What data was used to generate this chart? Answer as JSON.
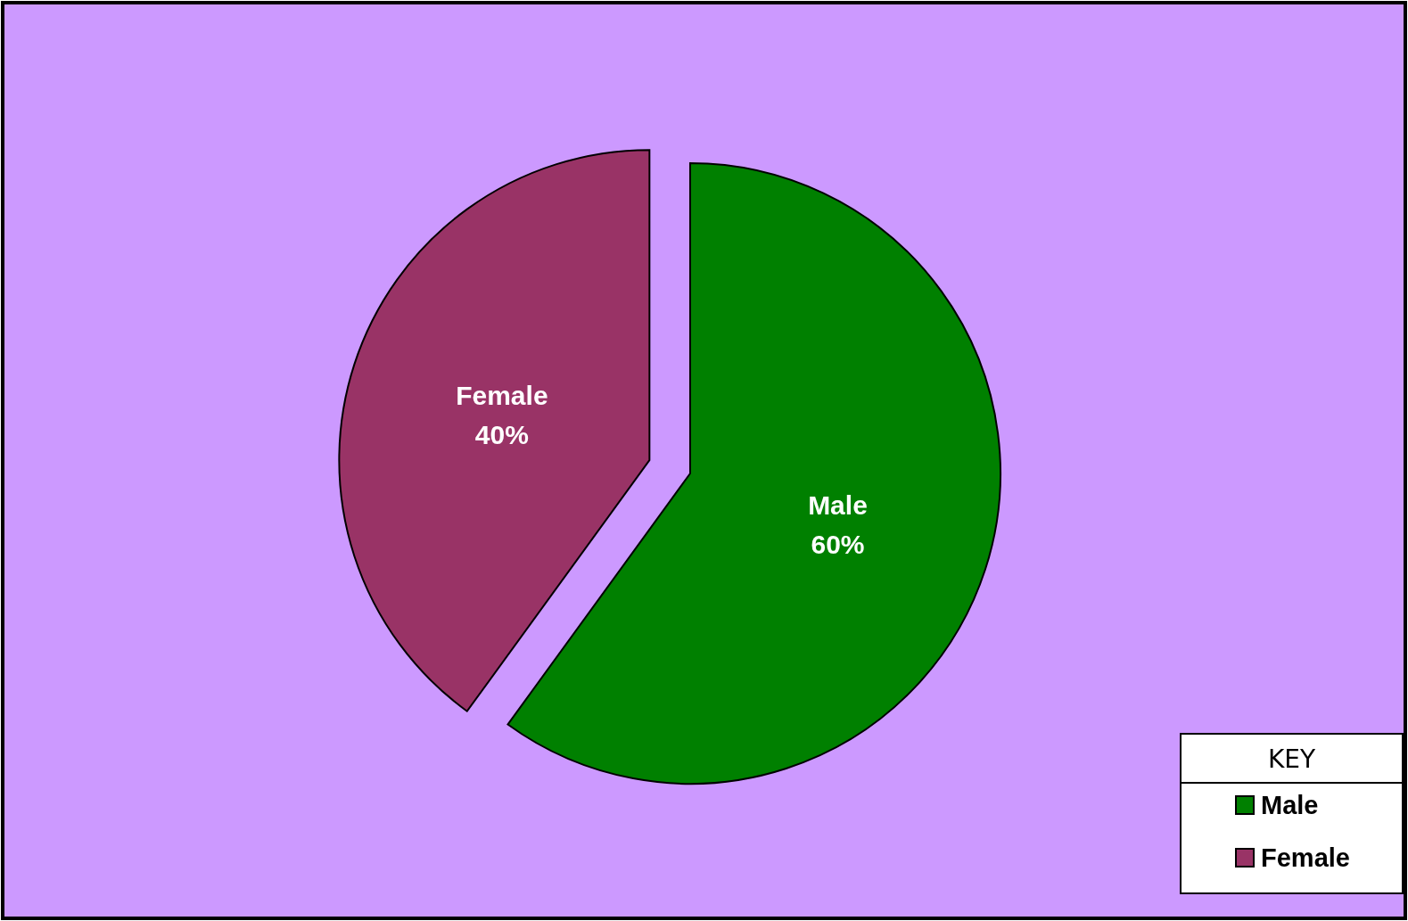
{
  "chart_data": {
    "type": "pie",
    "categories": [
      "Male",
      "Female"
    ],
    "values": [
      60,
      40
    ],
    "colors": [
      "#008000",
      "#993366"
    ],
    "value_labels": [
      "60%",
      "40%"
    ],
    "legend": "bottom right",
    "legend_title": "KEY"
  }
}
